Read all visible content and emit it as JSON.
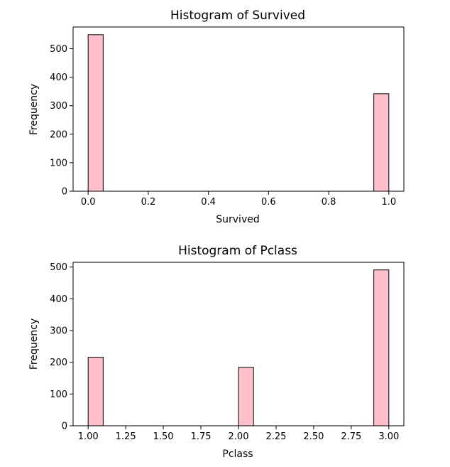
{
  "chart_data": [
    {
      "type": "bar",
      "title": "Histogram of Survived",
      "xlabel": "Survived",
      "ylabel": "Frequency",
      "xlim": [
        -0.05,
        1.05
      ],
      "ylim": [
        0,
        576
      ],
      "xticks": [
        0.0,
        0.2,
        0.4,
        0.6,
        0.8,
        1.0
      ],
      "xtick_labels": [
        "0.0",
        "0.2",
        "0.4",
        "0.6",
        "0.8",
        "1.0"
      ],
      "yticks": [
        0,
        100,
        200,
        300,
        400,
        500
      ],
      "ytick_labels": [
        "0",
        "100",
        "200",
        "300",
        "400",
        "500"
      ],
      "bins": [
        {
          "start": 0.0,
          "end": 0.05,
          "count": 549
        },
        {
          "start": 0.95,
          "end": 1.0,
          "count": 342
        }
      ],
      "bar_color": "#ffc0cb",
      "edge_color": "#000000",
      "grid": false
    },
    {
      "type": "bar",
      "title": "Histogram of Pclass",
      "xlabel": "Pclass",
      "ylabel": "Frequency",
      "xlim": [
        0.9,
        3.1
      ],
      "ylim": [
        0,
        515
      ],
      "xticks": [
        1.0,
        1.25,
        1.5,
        1.75,
        2.0,
        2.25,
        2.5,
        2.75,
        3.0
      ],
      "xtick_labels": [
        "1.00",
        "1.25",
        "1.50",
        "1.75",
        "2.00",
        "2.25",
        "2.50",
        "2.75",
        "3.00"
      ],
      "yticks": [
        0,
        100,
        200,
        300,
        400,
        500
      ],
      "ytick_labels": [
        "0",
        "100",
        "200",
        "300",
        "400",
        "500"
      ],
      "bins": [
        {
          "start": 1.0,
          "end": 1.1,
          "count": 216
        },
        {
          "start": 2.0,
          "end": 2.1,
          "count": 184
        },
        {
          "start": 2.9,
          "end": 3.0,
          "count": 491
        }
      ],
      "bar_color": "#ffc0cb",
      "edge_color": "#000000",
      "grid": false
    }
  ]
}
